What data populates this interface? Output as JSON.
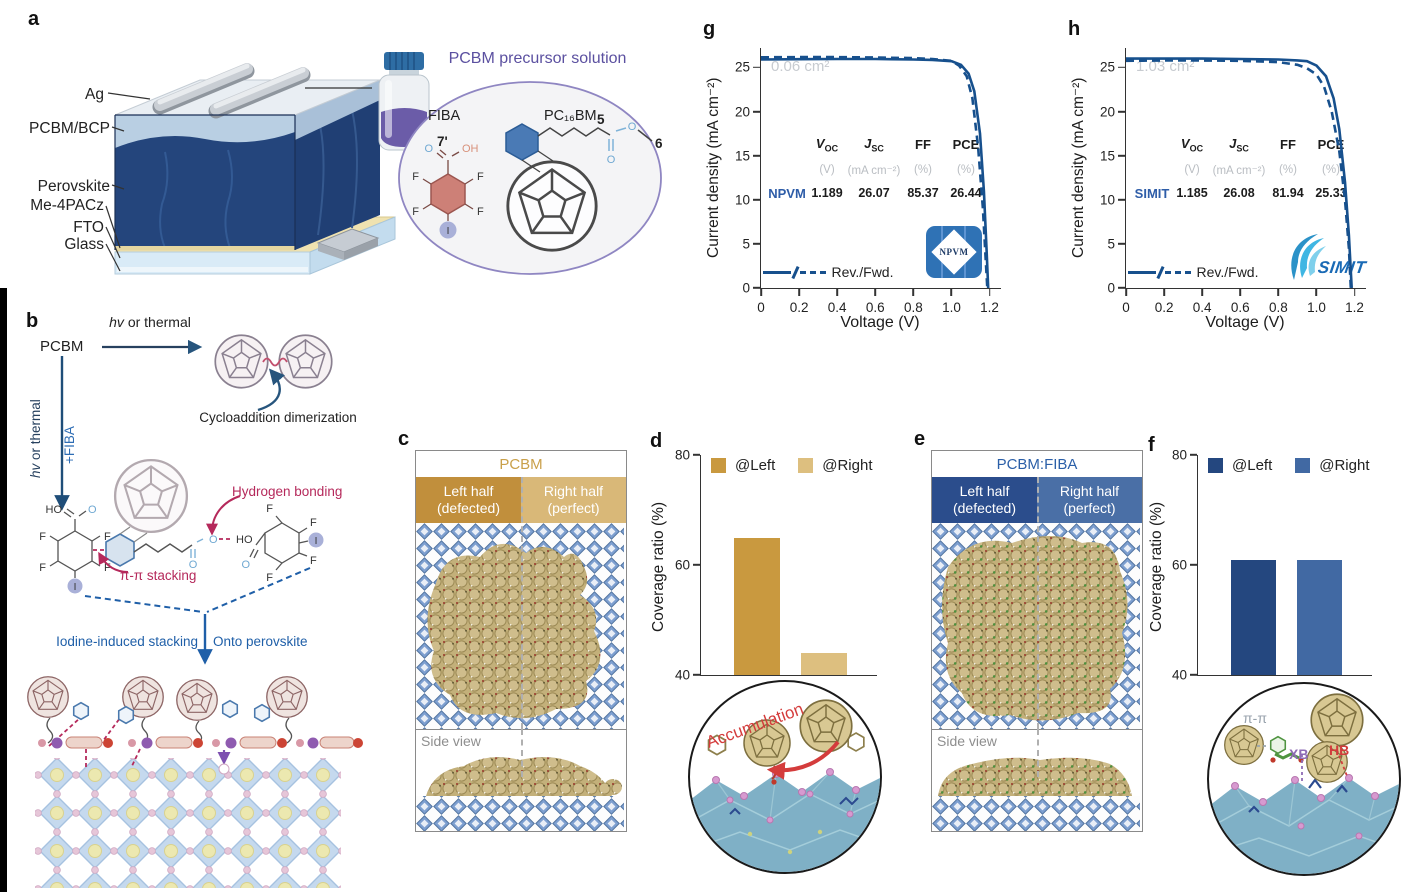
{
  "colors": {
    "navy_curve": "#17508d",
    "blue_text": "#2e5da8",
    "purple_title": "#5b50a0",
    "crimson": "#b5295b",
    "red_accent": "#d43c3c",
    "gold_bar_dark": "#c9993f",
    "gold_bar_light": "#ddbf7f",
    "gold_header_dark": "#c18f3c",
    "gold_header_light": "#d9b878",
    "blue_header_dark": "#2b4d8c",
    "blue_header_light": "#4a6fa6",
    "bar_blue_dark": "#24477f",
    "bar_blue_mid": "#4169a3"
  },
  "panels": {
    "a": {
      "label": "a",
      "layers": [
        "Ag",
        "PCBM/BCP",
        "Perovskite",
        "Me-4PACz",
        "FTO",
        "Glass"
      ],
      "solution_title": "PCBM precursor solution",
      "fiba_name": "FIBA",
      "fiba_pos": "7'",
      "pcbm_name": "PC₁₆BM",
      "chain_num_5": "5",
      "chain_num_6": "6",
      "atom_f": "F",
      "atom_i": "I",
      "atom_o": "O",
      "atom_oh": "OH"
    },
    "b": {
      "label": "b",
      "pcbm": "PCBM",
      "hv_italic": "hv",
      "hv_rest": " or thermal",
      "dimer_caption": "Cycloaddition dimerization",
      "fiba_add": "+FIBA",
      "hbond_label": "Hydrogen bonding",
      "pipi_label": "π-π stacking",
      "route_left": "Iodine-induced stacking",
      "route_right": "Onto perovskite",
      "atom_f": "F",
      "atom_i": "I",
      "atom_o": "O",
      "atom_ho": "HO"
    },
    "c": {
      "label": "c",
      "title": "PCBM",
      "left_l1": "Left half",
      "left_l2": "(defected)",
      "right_l1": "Right half",
      "right_l2": "(perfect)",
      "side_view": "Side view"
    },
    "d": {
      "label": "d",
      "inset_label": "Accumulation"
    },
    "e": {
      "label": "e",
      "title": "PCBM:FIBA",
      "left_l1": "Left half",
      "left_l2": "(defected)",
      "right_l1": "Right half",
      "right_l2": "(perfect)",
      "side_view": "Side view"
    },
    "f": {
      "label": "f",
      "inset_pipi": "π-π",
      "inset_xb": "XB",
      "inset_hb": "HB"
    },
    "g": {
      "label": "g"
    },
    "h": {
      "label": "h"
    }
  },
  "chart_data": [
    {
      "id": "d-bar",
      "type": "bar",
      "panel": "d",
      "categories": [
        "@Left",
        "@Right"
      ],
      "values": [
        65,
        44
      ],
      "colors": [
        "#c9993f",
        "#ddbf7f"
      ],
      "legend": [
        "@Left",
        "@Right"
      ],
      "ylabel": "Coverage ratio (%)",
      "ylim": [
        40,
        80
      ],
      "yticks": [
        40,
        60,
        80
      ],
      "ytick_labels": [
        "40",
        "60",
        "80"
      ],
      "grid": false,
      "legend_position": "top"
    },
    {
      "id": "f-bar",
      "type": "bar",
      "panel": "f",
      "categories": [
        "@Left",
        "@Right"
      ],
      "values": [
        61,
        61
      ],
      "colors": [
        "#24477f",
        "#4169a3"
      ],
      "legend": [
        "@Left",
        "@Right"
      ],
      "ylabel": "Coverage ratio (%)",
      "ylim": [
        40,
        80
      ],
      "yticks": [
        40,
        60,
        80
      ],
      "ytick_labels": [
        "40",
        "60",
        "80"
      ],
      "grid": false,
      "legend_position": "top"
    },
    {
      "id": "g-jv",
      "type": "line",
      "panel": "g",
      "area_label": "0.06 cm²",
      "xlabel": "Voltage (V)",
      "ylabel": "Current density (mA cm⁻²)",
      "xlim": [
        0,
        1.26
      ],
      "ylim": [
        0,
        27.2
      ],
      "xticks": [
        0,
        0.2,
        0.4,
        0.6,
        0.8,
        1,
        1.2
      ],
      "xtick_labels": [
        "0",
        "0.2",
        "0.4",
        "0.6",
        "0.8",
        "1.0",
        "1.2"
      ],
      "yticks": [
        0,
        5,
        10,
        15,
        20,
        25
      ],
      "ytick_labels": [
        "0",
        "5",
        "10",
        "15",
        "20",
        "25"
      ],
      "color": "#17508d",
      "grid": false,
      "legend_label": "Rev./Fwd.",
      "logo_text": "NPVM",
      "table": {
        "row_label": "NPVM",
        "headers": [
          {
            "main": "V",
            "sub": "OC"
          },
          {
            "main": "J",
            "sub": "SC"
          },
          {
            "main": "FF",
            "sub": ""
          },
          {
            "main": "PCE",
            "sub": ""
          }
        ],
        "units": [
          "(V)",
          "(mA cm⁻²)",
          "(%)",
          "(%)"
        ],
        "values": [
          "1.189",
          "26.07",
          "85.37",
          "26.44"
        ]
      },
      "series": [
        {
          "name": "Rev.",
          "style": "solid",
          "points": [
            [
              0,
              25.9
            ],
            [
              0.2,
              25.93
            ],
            [
              0.4,
              25.95
            ],
            [
              0.6,
              25.95
            ],
            [
              0.8,
              25.9
            ],
            [
              0.9,
              25.85
            ],
            [
              1,
              25.7
            ],
            [
              1.05,
              25.3
            ],
            [
              1.09,
              24.3
            ],
            [
              1.12,
              22.3
            ],
            [
              1.15,
              17.5
            ],
            [
              1.17,
              11
            ],
            [
              1.185,
              4
            ],
            [
              1.193,
              0
            ]
          ]
        },
        {
          "name": "Fwd.",
          "style": "dashed",
          "points": [
            [
              0,
              26.15
            ],
            [
              0.2,
              26.17
            ],
            [
              0.4,
              26.17
            ],
            [
              0.6,
              26.12
            ],
            [
              0.8,
              26.05
            ],
            [
              0.9,
              25.95
            ],
            [
              1,
              25.75
            ],
            [
              1.04,
              25.2
            ],
            [
              1.08,
              24
            ],
            [
              1.11,
              21.5
            ],
            [
              1.14,
              16
            ],
            [
              1.165,
              9
            ],
            [
              1.18,
              3
            ],
            [
              1.188,
              0
            ]
          ]
        }
      ]
    },
    {
      "id": "h-jv",
      "type": "line",
      "panel": "h",
      "area_label": "1.03 cm²",
      "xlabel": "Voltage (V)",
      "ylabel": "Current density (mA cm⁻²)",
      "xlim": [
        0,
        1.26
      ],
      "ylim": [
        0,
        27.2
      ],
      "xticks": [
        0,
        0.2,
        0.4,
        0.6,
        0.8,
        1,
        1.2
      ],
      "xtick_labels": [
        "0",
        "0.2",
        "0.4",
        "0.6",
        "0.8",
        "1.0",
        "1.2"
      ],
      "yticks": [
        0,
        5,
        10,
        15,
        20,
        25
      ],
      "ytick_labels": [
        "0",
        "5",
        "10",
        "15",
        "20",
        "25"
      ],
      "color": "#17508d",
      "grid": false,
      "legend_label": "Rev./Fwd.",
      "logo_text": "SIMIT",
      "table": {
        "row_label": "SIMIT",
        "headers": [
          {
            "main": "V",
            "sub": "OC"
          },
          {
            "main": "J",
            "sub": "SC"
          },
          {
            "main": "FF",
            "sub": ""
          },
          {
            "main": "PCE",
            "sub": ""
          }
        ],
        "units": [
          "(V)",
          "(mA cm⁻²)",
          "(%)",
          "(%)"
        ],
        "values": [
          "1.185",
          "26.08",
          "81.94",
          "25.33"
        ]
      },
      "series": [
        {
          "name": "Rev.",
          "style": "solid",
          "points": [
            [
              0,
              26
            ],
            [
              0.2,
              26
            ],
            [
              0.4,
              26
            ],
            [
              0.6,
              25.95
            ],
            [
              0.8,
              25.9
            ],
            [
              0.9,
              25.8
            ],
            [
              0.95,
              25.7
            ],
            [
              1,
              25.2
            ],
            [
              1.05,
              24
            ],
            [
              1.09,
              21.5
            ],
            [
              1.12,
              18
            ],
            [
              1.15,
              12
            ],
            [
              1.17,
              6
            ],
            [
              1.185,
              0
            ]
          ]
        },
        {
          "name": "Fwd.",
          "style": "dashed",
          "points": [
            [
              0,
              25.75
            ],
            [
              0.2,
              25.78
            ],
            [
              0.4,
              25.78
            ],
            [
              0.6,
              25.75
            ],
            [
              0.8,
              25.6
            ],
            [
              0.9,
              25.3
            ],
            [
              0.95,
              24.9
            ],
            [
              1,
              24.2
            ],
            [
              1.04,
              22.8
            ],
            [
              1.08,
              20
            ],
            [
              1.12,
              15.5
            ],
            [
              1.15,
              10
            ],
            [
              1.17,
              4.5
            ],
            [
              1.18,
              0
            ]
          ]
        }
      ]
    }
  ]
}
